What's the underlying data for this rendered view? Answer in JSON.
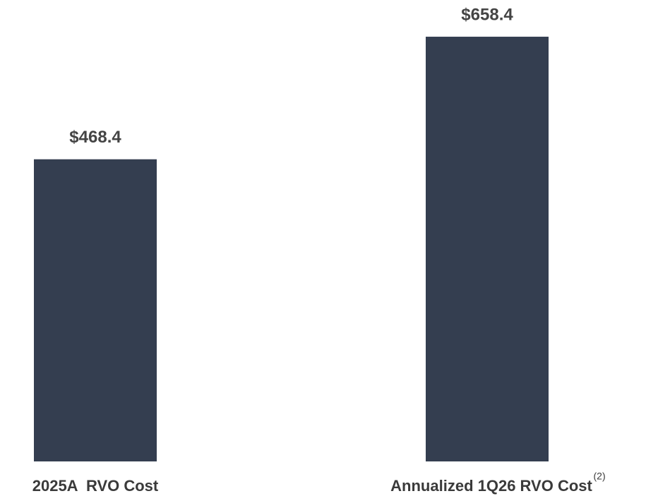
{
  "chart_data": {
    "type": "bar",
    "categories": [
      "2025A  RVO Cost",
      "Annualized 1Q26 RVO Cost"
    ],
    "footnote_markers": [
      null,
      "(2)"
    ],
    "values": [
      468.4,
      658.4
    ],
    "value_labels": [
      "$468.4",
      "$658.4"
    ],
    "color": "#343e50",
    "ylim": [
      0,
      700
    ]
  }
}
